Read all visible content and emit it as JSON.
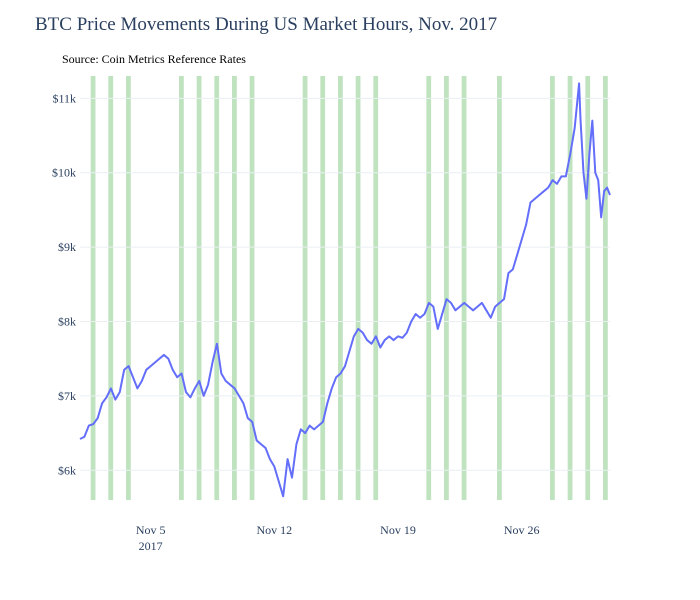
{
  "chart_data": {
    "type": "line",
    "title": "BTC Price Movements During US Market Hours, Nov. 2017",
    "annotation": "Source: Coin Metrics Reference Rates",
    "xlabel": "",
    "ylabel": "",
    "x_range": [
      "2017-11-01",
      "2017-12-01"
    ],
    "ylim": [
      5600,
      11300
    ],
    "y_ticks": [
      {
        "value": 6000,
        "label": "$6k"
      },
      {
        "value": 7000,
        "label": "$7k"
      },
      {
        "value": 8000,
        "label": "$8k"
      },
      {
        "value": 9000,
        "label": "$9k"
      },
      {
        "value": 10000,
        "label": "$10k"
      },
      {
        "value": 11000,
        "label": "$11k"
      }
    ],
    "x_ticks": [
      {
        "date": "2017-11-05",
        "label": "Nov 5",
        "sublabel": "2017"
      },
      {
        "date": "2017-11-12",
        "label": "Nov 12",
        "sublabel": ""
      },
      {
        "date": "2017-11-19",
        "label": "Nov 19",
        "sublabel": ""
      },
      {
        "date": "2017-11-26",
        "label": "Nov 26",
        "sublabel": ""
      }
    ],
    "grid": true,
    "line_color": "#636efa",
    "band_color": "#a9d8a9",
    "market_hours": [
      "2017-11-01",
      "2017-11-02",
      "2017-11-03",
      "2017-11-06",
      "2017-11-07",
      "2017-11-08",
      "2017-11-09",
      "2017-11-10",
      "2017-11-13",
      "2017-11-14",
      "2017-11-15",
      "2017-11-16",
      "2017-11-17",
      "2017-11-20",
      "2017-11-21",
      "2017-11-22",
      "2017-11-24",
      "2017-11-27",
      "2017-11-28",
      "2017-11-29",
      "2017-11-30"
    ],
    "series": [
      {
        "points": [
          [
            "2017-11-01 00:00",
            6420
          ],
          [
            "2017-11-01 06:00",
            6450
          ],
          [
            "2017-11-01 12:00",
            6600
          ],
          [
            "2017-11-01 18:00",
            6620
          ],
          [
            "2017-11-02 00:00",
            6700
          ],
          [
            "2017-11-02 06:00",
            6900
          ],
          [
            "2017-11-02 12:00",
            6980
          ],
          [
            "2017-11-02 18:00",
            7100
          ],
          [
            "2017-11-03 00:00",
            6950
          ],
          [
            "2017-11-03 06:00",
            7050
          ],
          [
            "2017-11-03 12:00",
            7350
          ],
          [
            "2017-11-03 18:00",
            7400
          ],
          [
            "2017-11-04 00:00",
            7250
          ],
          [
            "2017-11-04 06:00",
            7100
          ],
          [
            "2017-11-04 12:00",
            7200
          ],
          [
            "2017-11-04 18:00",
            7350
          ],
          [
            "2017-11-05 00:00",
            7400
          ],
          [
            "2017-11-05 06:00",
            7450
          ],
          [
            "2017-11-05 12:00",
            7500
          ],
          [
            "2017-11-05 18:00",
            7550
          ],
          [
            "2017-11-06 00:00",
            7500
          ],
          [
            "2017-11-06 06:00",
            7350
          ],
          [
            "2017-11-06 12:00",
            7250
          ],
          [
            "2017-11-06 18:00",
            7300
          ],
          [
            "2017-11-07 00:00",
            7050
          ],
          [
            "2017-11-07 06:00",
            6980
          ],
          [
            "2017-11-07 12:00",
            7100
          ],
          [
            "2017-11-07 18:00",
            7200
          ],
          [
            "2017-11-08 00:00",
            7000
          ],
          [
            "2017-11-08 06:00",
            7150
          ],
          [
            "2017-11-08 12:00",
            7450
          ],
          [
            "2017-11-08 18:00",
            7700
          ],
          [
            "2017-11-09 00:00",
            7300
          ],
          [
            "2017-11-09 06:00",
            7200
          ],
          [
            "2017-11-09 12:00",
            7150
          ],
          [
            "2017-11-09 18:00",
            7100
          ],
          [
            "2017-11-10 00:00",
            7000
          ],
          [
            "2017-11-10 06:00",
            6900
          ],
          [
            "2017-11-10 12:00",
            6700
          ],
          [
            "2017-11-10 18:00",
            6650
          ],
          [
            "2017-11-11 00:00",
            6400
          ],
          [
            "2017-11-11 06:00",
            6350
          ],
          [
            "2017-11-11 12:00",
            6300
          ],
          [
            "2017-11-11 18:00",
            6150
          ],
          [
            "2017-11-12 00:00",
            6050
          ],
          [
            "2017-11-12 06:00",
            5850
          ],
          [
            "2017-11-12 12:00",
            5650
          ],
          [
            "2017-11-12 18:00",
            6150
          ],
          [
            "2017-11-13 00:00",
            5900
          ],
          [
            "2017-11-13 06:00",
            6350
          ],
          [
            "2017-11-13 12:00",
            6550
          ],
          [
            "2017-11-13 18:00",
            6500
          ],
          [
            "2017-11-14 00:00",
            6600
          ],
          [
            "2017-11-14 06:00",
            6550
          ],
          [
            "2017-11-14 12:00",
            6600
          ],
          [
            "2017-11-14 18:00",
            6650
          ],
          [
            "2017-11-15 00:00",
            6900
          ],
          [
            "2017-11-15 06:00",
            7100
          ],
          [
            "2017-11-15 12:00",
            7250
          ],
          [
            "2017-11-15 18:00",
            7300
          ],
          [
            "2017-11-16 00:00",
            7400
          ],
          [
            "2017-11-16 06:00",
            7600
          ],
          [
            "2017-11-16 12:00",
            7800
          ],
          [
            "2017-11-16 18:00",
            7900
          ],
          [
            "2017-11-17 00:00",
            7850
          ],
          [
            "2017-11-17 06:00",
            7750
          ],
          [
            "2017-11-17 12:00",
            7700
          ],
          [
            "2017-11-17 18:00",
            7800
          ],
          [
            "2017-11-18 00:00",
            7650
          ],
          [
            "2017-11-18 06:00",
            7750
          ],
          [
            "2017-11-18 12:00",
            7800
          ],
          [
            "2017-11-18 18:00",
            7750
          ],
          [
            "2017-11-19 00:00",
            7800
          ],
          [
            "2017-11-19 06:00",
            7780
          ],
          [
            "2017-11-19 12:00",
            7850
          ],
          [
            "2017-11-19 18:00",
            8000
          ],
          [
            "2017-11-20 00:00",
            8100
          ],
          [
            "2017-11-20 06:00",
            8050
          ],
          [
            "2017-11-20 12:00",
            8100
          ],
          [
            "2017-11-20 18:00",
            8250
          ],
          [
            "2017-11-21 00:00",
            8200
          ],
          [
            "2017-11-21 06:00",
            7900
          ],
          [
            "2017-11-21 12:00",
            8100
          ],
          [
            "2017-11-21 18:00",
            8300
          ],
          [
            "2017-11-22 00:00",
            8250
          ],
          [
            "2017-11-22 06:00",
            8150
          ],
          [
            "2017-11-22 12:00",
            8200
          ],
          [
            "2017-11-22 18:00",
            8250
          ],
          [
            "2017-11-23 00:00",
            8200
          ],
          [
            "2017-11-23 06:00",
            8150
          ],
          [
            "2017-11-23 12:00",
            8200
          ],
          [
            "2017-11-23 18:00",
            8250
          ],
          [
            "2017-11-24 00:00",
            8150
          ],
          [
            "2017-11-24 06:00",
            8050
          ],
          [
            "2017-11-24 12:00",
            8200
          ],
          [
            "2017-11-24 18:00",
            8250
          ],
          [
            "2017-11-25 00:00",
            8300
          ],
          [
            "2017-11-25 06:00",
            8650
          ],
          [
            "2017-11-25 12:00",
            8700
          ],
          [
            "2017-11-25 18:00",
            8900
          ],
          [
            "2017-11-26 00:00",
            9100
          ],
          [
            "2017-11-26 06:00",
            9300
          ],
          [
            "2017-11-26 12:00",
            9600
          ],
          [
            "2017-11-26 18:00",
            9650
          ],
          [
            "2017-11-27 00:00",
            9700
          ],
          [
            "2017-11-27 06:00",
            9750
          ],
          [
            "2017-11-27 12:00",
            9800
          ],
          [
            "2017-11-27 18:00",
            9900
          ],
          [
            "2017-11-28 00:00",
            9850
          ],
          [
            "2017-11-28 06:00",
            9950
          ],
          [
            "2017-11-28 12:00",
            9950
          ],
          [
            "2017-11-28 18:00",
            10250
          ],
          [
            "2017-11-29 00:00",
            10600
          ],
          [
            "2017-11-29 06:00",
            11200
          ],
          [
            "2017-11-29 08:00",
            10700
          ],
          [
            "2017-11-29 12:00",
            10000
          ],
          [
            "2017-11-29 16:00",
            9650
          ],
          [
            "2017-11-29 20:00",
            10250
          ],
          [
            "2017-11-30 00:00",
            10700
          ],
          [
            "2017-11-30 04:00",
            10000
          ],
          [
            "2017-11-30 08:00",
            9900
          ],
          [
            "2017-11-30 12:00",
            9400
          ],
          [
            "2017-11-30 16:00",
            9750
          ],
          [
            "2017-11-30 20:00",
            9800
          ],
          [
            "2017-12-01 00:00",
            9700
          ]
        ]
      }
    ]
  }
}
